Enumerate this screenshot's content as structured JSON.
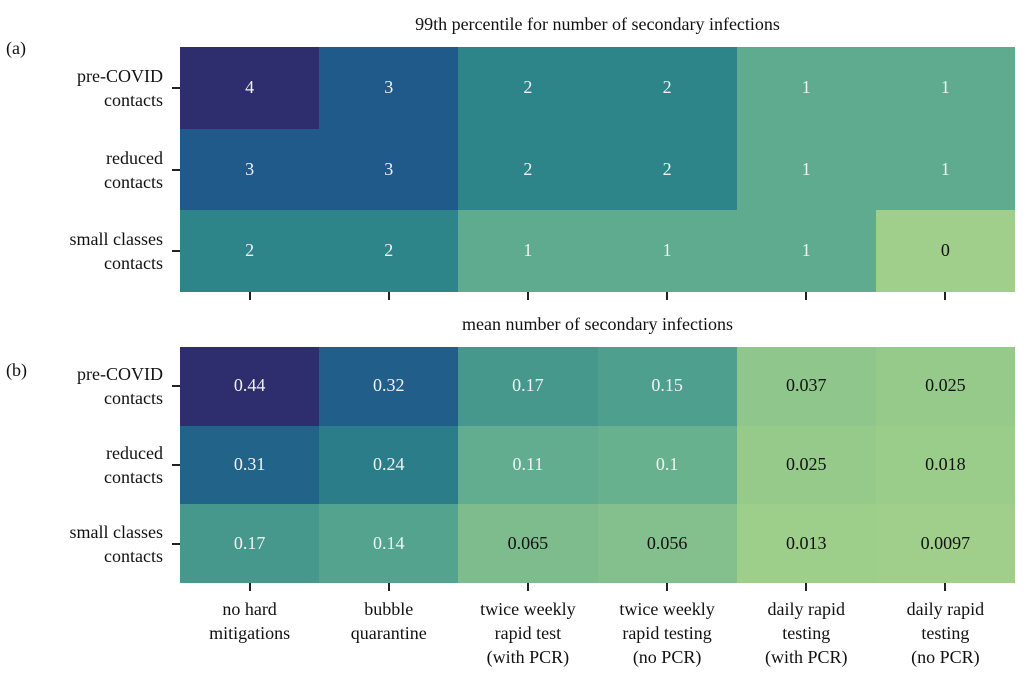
{
  "chart_data": [
    {
      "type": "heatmap",
      "label": "(a)",
      "title": "99th percentile for number of secondary infections",
      "categories": [
        null,
        null,
        null,
        null,
        null,
        null
      ],
      "rows": [
        "pre-COVID\ncontacts",
        "reduced\ncontacts",
        "small classes\ncontacts"
      ],
      "values": [
        [
          4,
          3,
          2,
          2,
          1,
          1
        ],
        [
          3,
          3,
          2,
          2,
          1,
          1
        ],
        [
          2,
          2,
          1,
          1,
          1,
          0
        ]
      ],
      "colormap": [
        "#9fcf8a",
        "#5eab90",
        "#2d8489",
        "#1f5a8a",
        "#2e2d6d"
      ]
    },
    {
      "type": "heatmap",
      "label": "(b)",
      "title": "mean number of secondary infections",
      "categories": [
        "no hard\nmitigations",
        "bubble\nquarantine",
        "twice weekly\nrapid test\n(with PCR)",
        "twice weekly\nrapid testing\n(no PCR)",
        "daily rapid\ntesting\n(with PCR)",
        "daily rapid\ntesting\n(no PCR)"
      ],
      "rows": [
        "pre-COVID\ncontacts",
        "reduced\ncontacts",
        "small classes\ncontacts"
      ],
      "values": [
        [
          0.44,
          0.32,
          0.17,
          0.15,
          0.037,
          0.025
        ],
        [
          0.31,
          0.24,
          0.11,
          0.1,
          0.025,
          0.018
        ],
        [
          0.17,
          0.14,
          0.065,
          0.056,
          0.013,
          0.0097
        ]
      ],
      "colormap": [
        "#9fcf8a",
        "#5eab90",
        "#2d8489",
        "#1f5a8a",
        "#2e2d6d"
      ]
    }
  ]
}
